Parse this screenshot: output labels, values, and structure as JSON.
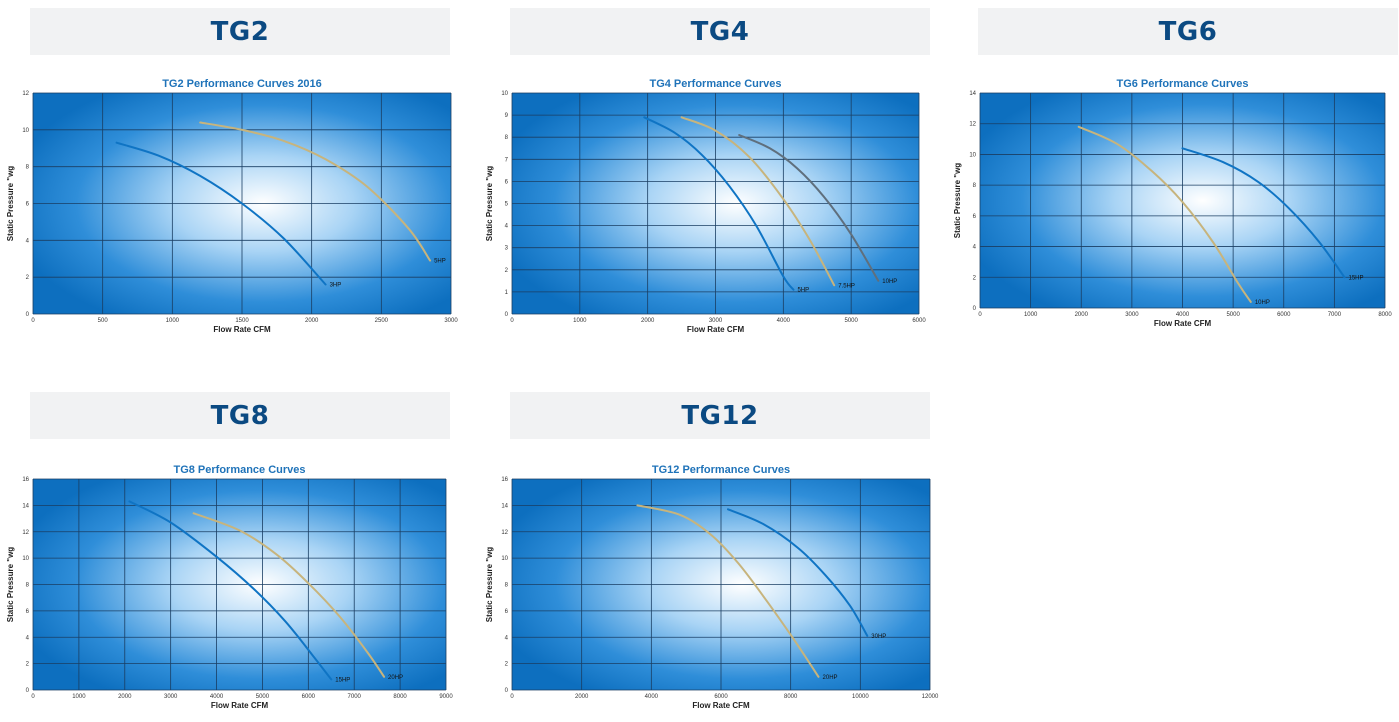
{
  "chart_data": [
    {
      "type": "line",
      "header": "TG2",
      "title": "TG2 Performance Curves 2016",
      "xlabel": "Flow Rate CFM",
      "ylabel": "Static Pressure \"wg",
      "xlim": [
        0,
        3000
      ],
      "ylim": [
        0,
        12
      ],
      "xticks": [
        0,
        500,
        1000,
        1500,
        2000,
        2500,
        3000
      ],
      "yticks": [
        0,
        2,
        4,
        6,
        8,
        10,
        12
      ],
      "grid": true,
      "series": [
        {
          "name": "3HP",
          "color": "#0f74c4",
          "x": [
            600,
            900,
            1200,
            1500,
            1800,
            2100
          ],
          "y": [
            9.3,
            8.6,
            7.5,
            6.0,
            4.1,
            1.6
          ]
        },
        {
          "name": "5HP",
          "color": "#c7b47d",
          "x": [
            1200,
            1500,
            1800,
            2100,
            2400,
            2700,
            2850
          ],
          "y": [
            10.4,
            10.0,
            9.4,
            8.4,
            6.9,
            4.6,
            2.9
          ]
        }
      ]
    },
    {
      "type": "line",
      "header": "TG4",
      "title": "TG4 Performance Curves",
      "xlabel": "Flow Rate CFM",
      "ylabel": "Static Pressure \"wg",
      "xlim": [
        0,
        6000
      ],
      "ylim": [
        0,
        10
      ],
      "xticks": [
        0,
        1000,
        2000,
        3000,
        4000,
        5000,
        6000
      ],
      "yticks": [
        0,
        1,
        2,
        3,
        4,
        5,
        6,
        7,
        8,
        9,
        10
      ],
      "grid": true,
      "series": [
        {
          "name": "5HP",
          "color": "#0f74c4",
          "x": [
            1950,
            2400,
            2800,
            3200,
            3600,
            4000,
            4150
          ],
          "y": [
            8.9,
            8.2,
            7.2,
            5.8,
            4.0,
            1.7,
            1.1
          ]
        },
        {
          "name": "7.5HP",
          "color": "#c7b47d",
          "x": [
            2500,
            3000,
            3500,
            4000,
            4400,
            4750
          ],
          "y": [
            8.9,
            8.3,
            7.1,
            5.2,
            3.3,
            1.3
          ]
        },
        {
          "name": "10HP",
          "color": "#5f6f7d",
          "x": [
            3350,
            3800,
            4200,
            4600,
            5000,
            5400
          ],
          "y": [
            8.1,
            7.5,
            6.6,
            5.3,
            3.6,
            1.5
          ]
        }
      ]
    },
    {
      "type": "line",
      "header": "TG6",
      "title": "TG6 Performance Curves",
      "xlabel": "Flow Rate CFM",
      "ylabel": "Static Pressure \"wg",
      "xlim": [
        0,
        8000
      ],
      "ylim": [
        0,
        14
      ],
      "xticks": [
        0,
        1000,
        2000,
        3000,
        4000,
        5000,
        6000,
        7000,
        8000
      ],
      "yticks": [
        0,
        2,
        4,
        6,
        8,
        10,
        12,
        14
      ],
      "grid": true,
      "series": [
        {
          "name": "10HP",
          "color": "#c7b47d",
          "x": [
            1950,
            2700,
            3400,
            4000,
            4600,
            5100,
            5350
          ],
          "y": [
            11.8,
            10.7,
            8.9,
            6.9,
            4.3,
            1.6,
            0.4
          ]
        },
        {
          "name": "15HP",
          "color": "#0f74c4",
          "x": [
            4000,
            4800,
            5500,
            6100,
            6700,
            7200
          ],
          "y": [
            10.4,
            9.5,
            8.2,
            6.5,
            4.3,
            2.0
          ]
        }
      ]
    },
    {
      "type": "line",
      "header": "TG8",
      "title": "TG8 Performance Curves",
      "xlabel": "Flow Rate CFM",
      "ylabel": "Static Pressure \"wg",
      "xlim": [
        0,
        9000
      ],
      "ylim": [
        0,
        16
      ],
      "xticks": [
        0,
        1000,
        2000,
        3000,
        4000,
        5000,
        6000,
        7000,
        8000,
        9000
      ],
      "yticks": [
        0,
        2,
        4,
        6,
        8,
        10,
        12,
        14,
        16
      ],
      "grid": true,
      "series": [
        {
          "name": "15HP",
          "color": "#0f74c4",
          "x": [
            2100,
            3000,
            4000,
            4800,
            5500,
            6100,
            6500
          ],
          "y": [
            14.3,
            12.7,
            10.1,
            7.7,
            5.2,
            2.6,
            0.8
          ]
        },
        {
          "name": "20HP",
          "color": "#c7b47d",
          "x": [
            3500,
            4500,
            5300,
            6000,
            6700,
            7300,
            7650
          ],
          "y": [
            13.4,
            12.1,
            10.3,
            8.1,
            5.5,
            2.8,
            1.0
          ]
        }
      ]
    },
    {
      "type": "line",
      "header": "TG12",
      "title": "TG12 Performance Curves",
      "xlabel": "Flow Rate CFM",
      "ylabel": "Static Pressure \"wg",
      "xlim": [
        0,
        12000
      ],
      "ylim": [
        0,
        16
      ],
      "xticks": [
        0,
        2000,
        4000,
        6000,
        8000,
        10000,
        12000
      ],
      "yticks": [
        0,
        2,
        4,
        6,
        8,
        10,
        12,
        14,
        16
      ],
      "grid": true,
      "series": [
        {
          "name": "20HP",
          "color": "#c7b47d",
          "x": [
            3600,
            4800,
            5700,
            6500,
            7300,
            8100,
            8800
          ],
          "y": [
            14.0,
            13.3,
            11.8,
            9.6,
            6.8,
            3.8,
            1.0
          ]
        },
        {
          "name": "30HP",
          "color": "#0f74c4",
          "x": [
            6200,
            7200,
            8200,
            9000,
            9700,
            10200
          ],
          "y": [
            13.7,
            12.6,
            10.8,
            8.7,
            6.4,
            4.1
          ]
        }
      ]
    }
  ]
}
